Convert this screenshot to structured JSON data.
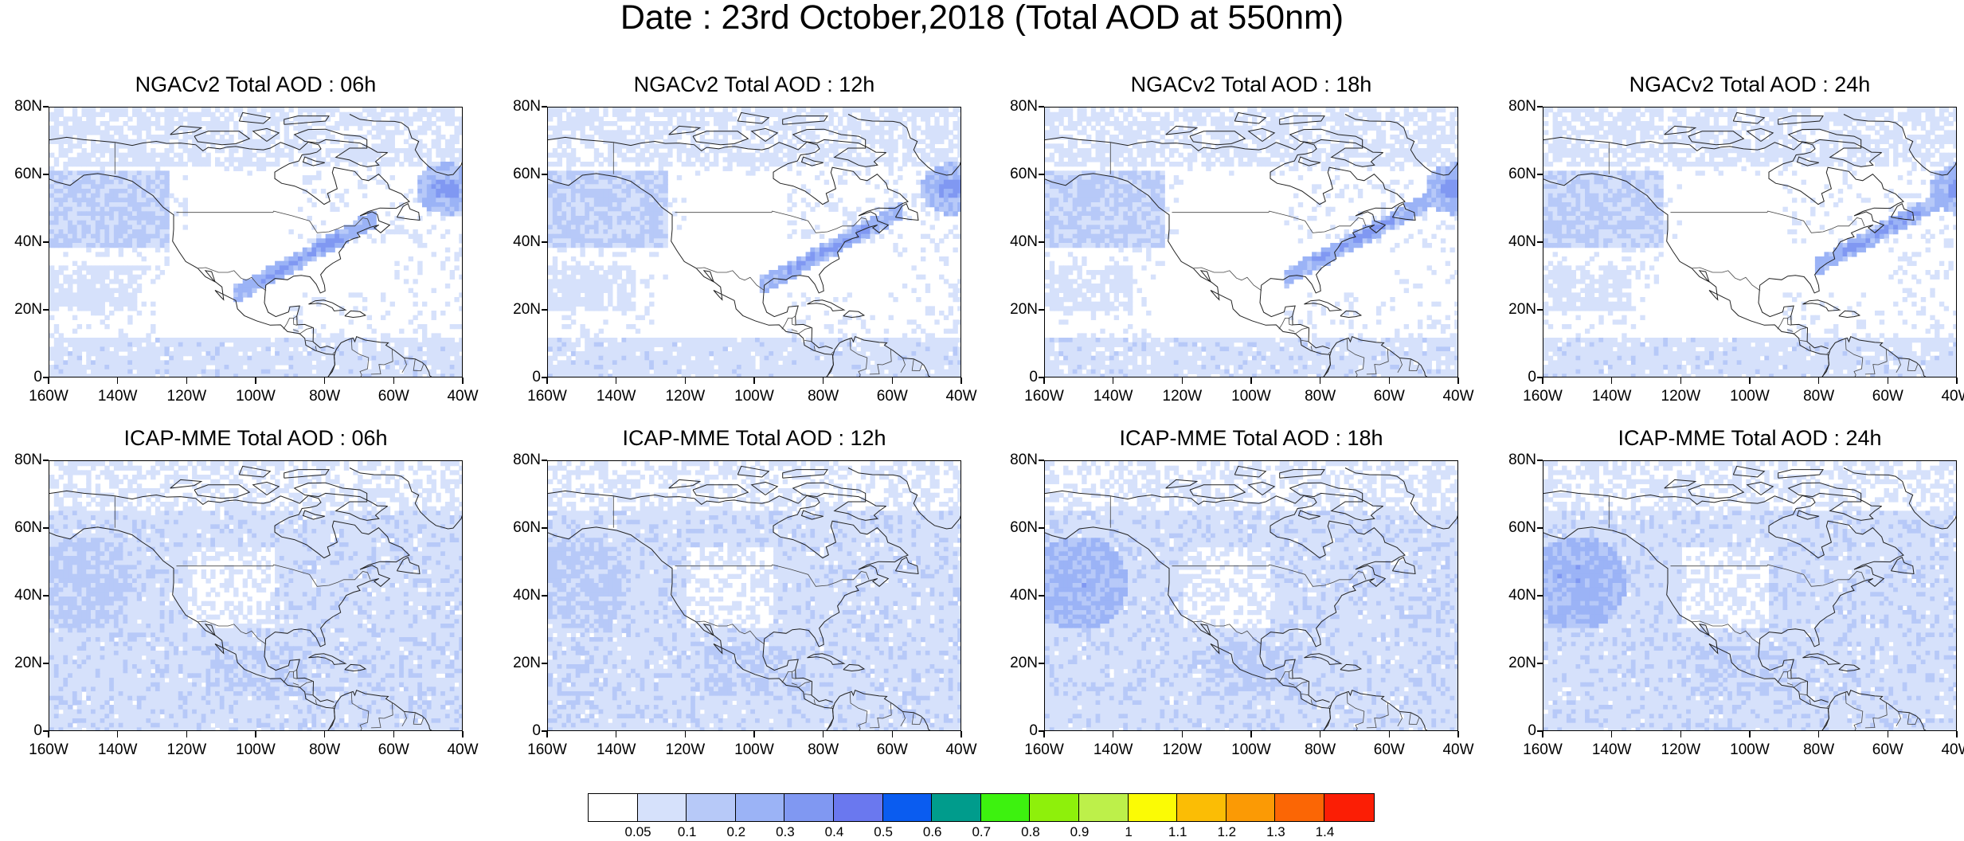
{
  "title": "Date : 23rd October,2018 (Total AOD at 550nm)",
  "panels": [
    {
      "title": "NGACv2 Total AOD : 06h",
      "model": "ngac"
    },
    {
      "title": "NGACv2 Total AOD : 12h",
      "model": "ngac"
    },
    {
      "title": "NGACv2 Total AOD : 18h",
      "model": "ngac"
    },
    {
      "title": "NGACv2 Total AOD : 24h",
      "model": "ngac"
    },
    {
      "title": "ICAP-MME Total AOD : 06h",
      "model": "icap"
    },
    {
      "title": "ICAP-MME Total AOD : 12h",
      "model": "icap"
    },
    {
      "title": "ICAP-MME Total AOD : 18h",
      "model": "icap"
    },
    {
      "title": "ICAP-MME Total AOD : 24h",
      "model": "icap"
    }
  ],
  "lat_labels": [
    "80N",
    "60N",
    "40N",
    "20N",
    "0"
  ],
  "lon_labels": [
    "160W",
    "140W",
    "120W",
    "100W",
    "80W",
    "60W",
    "40W"
  ],
  "colorbar": {
    "colors": [
      "#ffffff",
      "#d6e1fb",
      "#b7c9f8",
      "#9bb3f6",
      "#8098f2",
      "#6a78ef",
      "#0a5cf0",
      "#009c8c",
      "#3df20f",
      "#8ef00b",
      "#bdf04a",
      "#fbfb05",
      "#fbbd05",
      "#fb9a05",
      "#fb6605",
      "#fb1e05"
    ],
    "labels": [
      "0.05",
      "0.1",
      "0.2",
      "0.3",
      "0.4",
      "0.5",
      "0.6",
      "0.7",
      "0.8",
      "0.9",
      "1",
      "1.1",
      "1.2",
      "1.3",
      "1.4"
    ]
  }
}
